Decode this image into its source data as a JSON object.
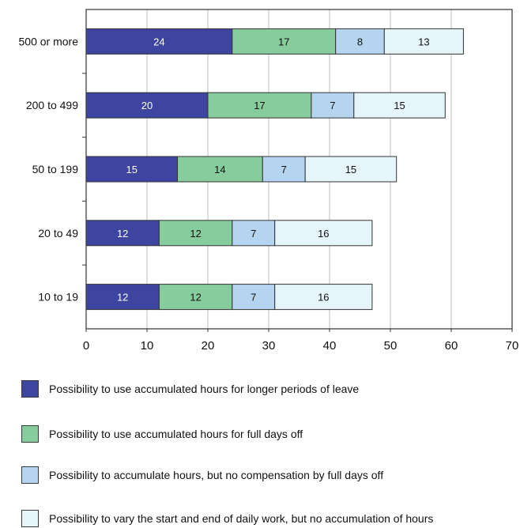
{
  "chart_data": {
    "type": "bar",
    "orientation": "horizontal",
    "stacked": true,
    "categories": [
      "500 or more",
      "200 to 499",
      "50 to 199",
      "20 to 49",
      "10 to 19"
    ],
    "series": [
      {
        "name": "Possibility to use accumulated hours for longer periods of leave",
        "color": "#3d45a0",
        "label_color": "#ffffff",
        "values": [
          24,
          20,
          15,
          12,
          12
        ]
      },
      {
        "name": "Possibility to use accumulated hours for full days off",
        "color": "#86cc9c",
        "label_color": "#111111",
        "values": [
          17,
          17,
          14,
          12,
          12
        ]
      },
      {
        "name": "Possibility to accumulate hours, but no compensation by full days off",
        "color": "#b4d4f0",
        "label_color": "#111111",
        "values": [
          8,
          7,
          7,
          7,
          7
        ]
      },
      {
        "name": "Possibility to vary the start and end of daily work, but no accumulation of hours",
        "color": "#e6f5f9",
        "label_color": "#111111",
        "values": [
          13,
          15,
          15,
          16,
          16
        ]
      }
    ],
    "xlim": [
      0,
      70
    ],
    "x_ticks": [
      "0",
      "10",
      "20",
      "30",
      "40",
      "50",
      "60",
      "70"
    ],
    "grid": "vertical",
    "title": "",
    "xlabel": "",
    "ylabel": "",
    "legend_position": "bottom"
  }
}
